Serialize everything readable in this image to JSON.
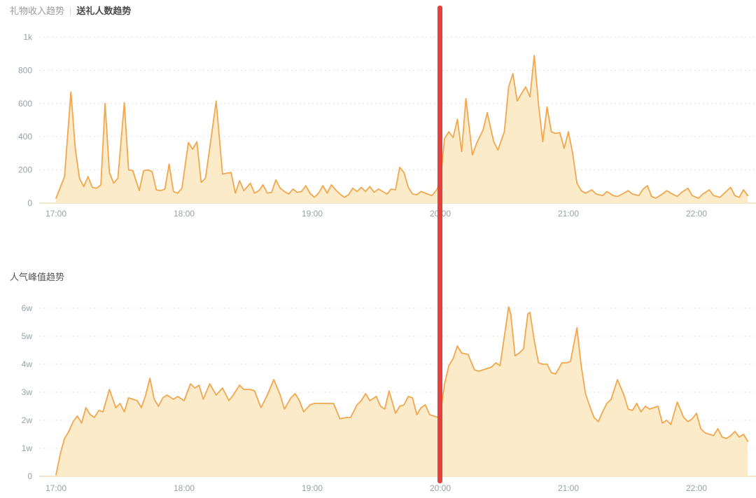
{
  "header": {
    "tab_inactive": "礼物收入趋势",
    "separator": "|",
    "tab_active": "送礼人数趋势"
  },
  "chart2_header": {
    "title": "人气峰值趋势"
  },
  "colors": {
    "line": "#f1a74f",
    "area_fill": "#fcebc9",
    "marker_line": "#e5403d",
    "gridline": "#e0e0e0",
    "axis_line": "#f0ddb6",
    "tick_text": "#9aa0a6",
    "title_active": "#4a4a4a",
    "title_inactive": "#9b9b9b",
    "title2": "#555555",
    "background": "#ffffff"
  },
  "chart_data": [
    {
      "id": "chart1",
      "type": "area",
      "title": "送礼人数趋势",
      "alternate_tab": "礼物收入趋势",
      "legend_position": "none",
      "grid": "horizontal-dashed",
      "x_unit": "minutes after 17:00",
      "xlabel": "",
      "ylabel": "",
      "ylim": [
        0,
        1000
      ],
      "y_ticks": [
        {
          "label": "0",
          "value": 0
        },
        {
          "label": "200",
          "value": 200
        },
        {
          "label": "400",
          "value": 400
        },
        {
          "label": "600",
          "value": 600
        },
        {
          "label": "800",
          "value": 800
        },
        {
          "label": "1k",
          "value": 1000
        }
      ],
      "x_ticks": [
        {
          "label": "17:00",
          "minute": 0
        },
        {
          "label": "18:00",
          "minute": 60
        },
        {
          "label": "19:00",
          "minute": 120
        },
        {
          "label": "20:00",
          "minute": 180
        },
        {
          "label": "21:00",
          "minute": 240
        },
        {
          "label": "22:00",
          "minute": 300
        }
      ],
      "annotation": "red vertical line at 20:00",
      "points": [
        [
          0,
          30
        ],
        [
          2,
          95
        ],
        [
          4,
          160
        ],
        [
          7,
          670
        ],
        [
          9,
          330
        ],
        [
          11,
          150
        ],
        [
          13,
          100
        ],
        [
          15,
          160
        ],
        [
          17,
          95
        ],
        [
          19,
          90
        ],
        [
          21,
          110
        ],
        [
          23,
          600
        ],
        [
          25,
          185
        ],
        [
          27,
          120
        ],
        [
          29,
          150
        ],
        [
          32,
          605
        ],
        [
          34,
          200
        ],
        [
          36,
          195
        ],
        [
          39,
          75
        ],
        [
          41,
          195
        ],
        [
          43,
          200
        ],
        [
          45,
          190
        ],
        [
          47,
          80
        ],
        [
          49,
          75
        ],
        [
          51,
          85
        ],
        [
          53,
          235
        ],
        [
          55,
          70
        ],
        [
          57,
          60
        ],
        [
          59,
          90
        ],
        [
          62,
          365
        ],
        [
          64,
          325
        ],
        [
          66,
          370
        ],
        [
          68,
          125
        ],
        [
          70,
          150
        ],
        [
          72,
          330
        ],
        [
          75,
          615
        ],
        [
          78,
          175
        ],
        [
          80,
          180
        ],
        [
          82,
          185
        ],
        [
          84,
          60
        ],
        [
          86,
          135
        ],
        [
          88,
          75
        ],
        [
          91,
          120
        ],
        [
          93,
          60
        ],
        [
          95,
          75
        ],
        [
          97,
          110
        ],
        [
          99,
          60
        ],
        [
          101,
          65
        ],
        [
          103,
          140
        ],
        [
          105,
          90
        ],
        [
          107,
          70
        ],
        [
          109,
          55
        ],
        [
          111,
          85
        ],
        [
          113,
          65
        ],
        [
          115,
          70
        ],
        [
          117,
          105
        ],
        [
          119,
          60
        ],
        [
          121,
          35
        ],
        [
          123,
          60
        ],
        [
          125,
          105
        ],
        [
          127,
          60
        ],
        [
          129,
          110
        ],
        [
          131,
          80
        ],
        [
          133,
          55
        ],
        [
          135,
          35
        ],
        [
          137,
          50
        ],
        [
          139,
          90
        ],
        [
          141,
          70
        ],
        [
          143,
          95
        ],
        [
          145,
          70
        ],
        [
          147,
          100
        ],
        [
          149,
          65
        ],
        [
          151,
          85
        ],
        [
          153,
          70
        ],
        [
          155,
          55
        ],
        [
          157,
          85
        ],
        [
          159,
          80
        ],
        [
          161,
          215
        ],
        [
          163,
          185
        ],
        [
          165,
          95
        ],
        [
          167,
          55
        ],
        [
          169,
          50
        ],
        [
          171,
          70
        ],
        [
          174,
          55
        ],
        [
          176,
          45
        ],
        [
          178,
          75
        ],
        [
          180,
          120
        ],
        [
          182,
          390
        ],
        [
          184,
          430
        ],
        [
          186,
          395
        ],
        [
          188,
          505
        ],
        [
          190,
          310
        ],
        [
          192,
          630
        ],
        [
          195,
          290
        ],
        [
          197,
          360
        ],
        [
          200,
          440
        ],
        [
          202,
          545
        ],
        [
          205,
          370
        ],
        [
          207,
          320
        ],
        [
          210,
          430
        ],
        [
          212,
          700
        ],
        [
          214,
          780
        ],
        [
          216,
          615
        ],
        [
          218,
          660
        ],
        [
          220,
          700
        ],
        [
          222,
          640
        ],
        [
          224,
          890
        ],
        [
          226,
          595
        ],
        [
          228,
          370
        ],
        [
          230,
          580
        ],
        [
          232,
          430
        ],
        [
          234,
          420
        ],
        [
          236,
          425
        ],
        [
          238,
          330
        ],
        [
          240,
          430
        ],
        [
          242,
          300
        ],
        [
          244,
          120
        ],
        [
          246,
          75
        ],
        [
          248,
          60
        ],
        [
          251,
          80
        ],
        [
          253,
          55
        ],
        [
          256,
          45
        ],
        [
          258,
          70
        ],
        [
          261,
          45
        ],
        [
          263,
          40
        ],
        [
          266,
          60
        ],
        [
          268,
          75
        ],
        [
          270,
          55
        ],
        [
          273,
          45
        ],
        [
          275,
          85
        ],
        [
          277,
          105
        ],
        [
          279,
          40
        ],
        [
          281,
          30
        ],
        [
          284,
          55
        ],
        [
          286,
          75
        ],
        [
          288,
          60
        ],
        [
          291,
          40
        ],
        [
          293,
          65
        ],
        [
          296,
          90
        ],
        [
          298,
          45
        ],
        [
          301,
          30
        ],
        [
          303,
          55
        ],
        [
          306,
          80
        ],
        [
          308,
          45
        ],
        [
          311,
          35
        ],
        [
          313,
          60
        ],
        [
          316,
          95
        ],
        [
          318,
          45
        ],
        [
          320,
          35
        ],
        [
          322,
          80
        ],
        [
          324,
          45
        ]
      ]
    },
    {
      "id": "chart2",
      "type": "area",
      "title": "人气峰值趋势",
      "legend_position": "none",
      "grid": "horizontal-dashed",
      "x_unit": "minutes after 17:00",
      "y_unit": "w (万 = 10000)",
      "xlabel": "",
      "ylabel": "",
      "ylim": [
        0,
        6
      ],
      "y_ticks": [
        {
          "label": "0",
          "value": 0
        },
        {
          "label": "1w",
          "value": 1
        },
        {
          "label": "2w",
          "value": 2
        },
        {
          "label": "3w",
          "value": 3
        },
        {
          "label": "4w",
          "value": 4
        },
        {
          "label": "5w",
          "value": 5
        },
        {
          "label": "6w",
          "value": 6
        }
      ],
      "x_ticks": [
        {
          "label": "17:00",
          "minute": 0
        },
        {
          "label": "18:00",
          "minute": 60
        },
        {
          "label": "19:00",
          "minute": 120
        },
        {
          "label": "20:00",
          "minute": 180
        },
        {
          "label": "21:00",
          "minute": 240
        },
        {
          "label": "22:00",
          "minute": 300
        }
      ],
      "annotation": "red vertical line at 20:00",
      "points": [
        [
          0,
          0.05
        ],
        [
          2,
          0.8
        ],
        [
          4,
          1.35
        ],
        [
          6,
          1.6
        ],
        [
          8,
          1.95
        ],
        [
          10,
          2.15
        ],
        [
          12,
          1.9
        ],
        [
          14,
          2.45
        ],
        [
          16,
          2.2
        ],
        [
          18,
          2.1
        ],
        [
          20,
          2.35
        ],
        [
          22,
          2.3
        ],
        [
          25,
          3.1
        ],
        [
          28,
          2.45
        ],
        [
          30,
          2.6
        ],
        [
          32,
          2.3
        ],
        [
          34,
          2.8
        ],
        [
          36,
          2.75
        ],
        [
          38,
          2.7
        ],
        [
          40,
          2.45
        ],
        [
          42,
          2.9
        ],
        [
          44,
          3.5
        ],
        [
          46,
          2.75
        ],
        [
          48,
          2.5
        ],
        [
          50,
          2.8
        ],
        [
          52,
          2.9
        ],
        [
          55,
          2.75
        ],
        [
          57,
          2.85
        ],
        [
          60,
          2.7
        ],
        [
          63,
          3.3
        ],
        [
          65,
          3.15
        ],
        [
          67,
          3.25
        ],
        [
          69,
          2.75
        ],
        [
          72,
          3.3
        ],
        [
          75,
          2.9
        ],
        [
          78,
          3.15
        ],
        [
          81,
          2.7
        ],
        [
          83,
          2.9
        ],
        [
          86,
          3.25
        ],
        [
          88,
          3.1
        ],
        [
          91,
          3.1
        ],
        [
          93,
          3.05
        ],
        [
          96,
          2.45
        ],
        [
          99,
          2.9
        ],
        [
          102,
          3.45
        ],
        [
          105,
          2.9
        ],
        [
          107,
          2.4
        ],
        [
          110,
          2.8
        ],
        [
          112,
          2.95
        ],
        [
          114,
          2.7
        ],
        [
          116,
          2.3
        ],
        [
          119,
          2.55
        ],
        [
          121,
          2.6
        ],
        [
          124,
          2.6
        ],
        [
          127,
          2.6
        ],
        [
          130,
          2.6
        ],
        [
          133,
          2.05
        ],
        [
          136,
          2.1
        ],
        [
          138,
          2.1
        ],
        [
          141,
          2.55
        ],
        [
          143,
          2.7
        ],
        [
          145,
          2.95
        ],
        [
          147,
          2.7
        ],
        [
          150,
          2.85
        ],
        [
          152,
          2.5
        ],
        [
          154,
          2.4
        ],
        [
          156,
          3.05
        ],
        [
          159,
          2.25
        ],
        [
          161,
          2.5
        ],
        [
          163,
          2.55
        ],
        [
          165,
          2.85
        ],
        [
          167,
          2.8
        ],
        [
          169,
          2.2
        ],
        [
          171,
          2.45
        ],
        [
          173,
          2.55
        ],
        [
          175,
          2.2
        ],
        [
          177,
          2.15
        ],
        [
          179,
          2.1
        ],
        [
          180,
          2.2
        ],
        [
          182,
          3.3
        ],
        [
          184,
          3.95
        ],
        [
          186,
          4.2
        ],
        [
          188,
          4.65
        ],
        [
          190,
          4.4
        ],
        [
          193,
          4.35
        ],
        [
          196,
          3.8
        ],
        [
          198,
          3.75
        ],
        [
          200,
          3.8
        ],
        [
          202,
          3.85
        ],
        [
          204,
          3.9
        ],
        [
          206,
          4.05
        ],
        [
          208,
          3.95
        ],
        [
          210,
          5.0
        ],
        [
          212,
          6.05
        ],
        [
          213,
          5.8
        ],
        [
          215,
          4.3
        ],
        [
          217,
          4.4
        ],
        [
          219,
          4.55
        ],
        [
          221,
          5.8
        ],
        [
          222,
          5.85
        ],
        [
          224,
          4.85
        ],
        [
          226,
          4.05
        ],
        [
          228,
          4.0
        ],
        [
          230,
          4.0
        ],
        [
          232,
          3.7
        ],
        [
          234,
          3.65
        ],
        [
          237,
          4.05
        ],
        [
          239,
          4.05
        ],
        [
          241,
          4.1
        ],
        [
          244,
          5.3
        ],
        [
          246,
          3.95
        ],
        [
          248,
          2.95
        ],
        [
          250,
          2.5
        ],
        [
          252,
          2.1
        ],
        [
          254,
          1.95
        ],
        [
          256,
          2.3
        ],
        [
          258,
          2.6
        ],
        [
          260,
          2.75
        ],
        [
          263,
          3.45
        ],
        [
          266,
          2.9
        ],
        [
          268,
          2.4
        ],
        [
          270,
          2.35
        ],
        [
          272,
          2.6
        ],
        [
          274,
          2.3
        ],
        [
          276,
          2.5
        ],
        [
          278,
          2.4
        ],
        [
          280,
          2.45
        ],
        [
          282,
          2.5
        ],
        [
          284,
          1.9
        ],
        [
          286,
          2.0
        ],
        [
          288,
          1.85
        ],
        [
          291,
          2.65
        ],
        [
          294,
          2.1
        ],
        [
          296,
          1.95
        ],
        [
          298,
          2.05
        ],
        [
          300,
          2.25
        ],
        [
          302,
          1.7
        ],
        [
          304,
          1.55
        ],
        [
          306,
          1.5
        ],
        [
          308,
          1.45
        ],
        [
          310,
          1.7
        ],
        [
          312,
          1.4
        ],
        [
          314,
          1.35
        ],
        [
          316,
          1.45
        ],
        [
          318,
          1.6
        ],
        [
          320,
          1.4
        ],
        [
          322,
          1.5
        ],
        [
          324,
          1.25
        ]
      ]
    }
  ]
}
